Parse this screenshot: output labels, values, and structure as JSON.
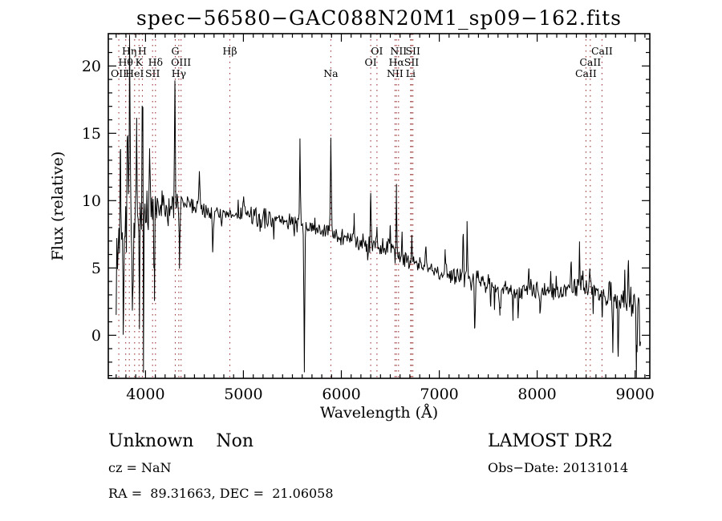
{
  "title": "spec−56580−GAC088N20M1_sp09−162.fits",
  "footer": {
    "classification": "Unknown    Non",
    "survey": "LAMOST DR2",
    "cz": "cz = NaN",
    "obs_date": "Obs−Date: 20131014",
    "ra_dec": "RA =  89.31663, DEC =  21.06058"
  },
  "chart_data": {
    "type": "line",
    "title": "spec−56580−GAC088N20M1_sp09−162.fits",
    "xlabel": "Wavelength (Å)",
    "ylabel": "Flux (relative)",
    "xlim": [
      3620,
      9150
    ],
    "ylim": [
      -3.2,
      22.4
    ],
    "x_major_ticks": [
      4000,
      5000,
      6000,
      7000,
      8000,
      9000
    ],
    "x_minor_step": 100,
    "y_major_ticks": [
      0,
      5,
      10,
      15,
      20
    ],
    "y_minor_step": 1,
    "grid": false,
    "trace_color": "#000000",
    "marker_line_color": "#993333",
    "line_markers": [
      {
        "wavelength": 3727,
        "label": "OII",
        "row": 3
      },
      {
        "wavelength": 3798,
        "label": "Hθ",
        "row": 2
      },
      {
        "wavelength": 3835,
        "label": "Hη",
        "row": 1
      },
      {
        "wavelength": 3889,
        "label": "HeI",
        "row": 3
      },
      {
        "wavelength": 3934,
        "label": "K",
        "row": 2
      },
      {
        "wavelength": 3968,
        "label": "H",
        "row": 1
      },
      {
        "wavelength": 4072,
        "label": "SII",
        "row": 3
      },
      {
        "wavelength": 4102,
        "label": "Hδ",
        "row": 2
      },
      {
        "wavelength": 4304,
        "label": "G",
        "row": 1
      },
      {
        "wavelength": 4340,
        "label": "Hγ",
        "row": 3
      },
      {
        "wavelength": 4363,
        "label": "OIII",
        "row": 2
      },
      {
        "wavelength": 4861,
        "label": "Hβ",
        "row": 1
      },
      {
        "wavelength": 5893,
        "label": "Na",
        "row": 3
      },
      {
        "wavelength": 6300,
        "label": "OI",
        "row": 2
      },
      {
        "wavelength": 6364,
        "label": "OI",
        "row": 1
      },
      {
        "wavelength": 6548,
        "label": "NII",
        "row": 3
      },
      {
        "wavelength": 6563,
        "label": "Hα",
        "row": 2
      },
      {
        "wavelength": 6584,
        "label": "NII",
        "row": 1
      },
      {
        "wavelength": 6708,
        "label": "Li",
        "row": 3
      },
      {
        "wavelength": 6717,
        "label": "SII",
        "row": 2
      },
      {
        "wavelength": 6731,
        "label": "SII",
        "row": 1
      },
      {
        "wavelength": 8498,
        "label": "CaII",
        "row": 3
      },
      {
        "wavelength": 8542,
        "label": "CaII",
        "row": 2
      },
      {
        "wavelength": 8662,
        "label": "CaII",
        "row": 1
      }
    ],
    "spectrum": {
      "range": [
        3700,
        9060
      ],
      "sample_step": 7,
      "continuum": [
        [
          3700,
          6.0
        ],
        [
          3780,
          7.8
        ],
        [
          3900,
          8.6
        ],
        [
          4000,
          8.8
        ],
        [
          4150,
          9.2
        ],
        [
          4300,
          9.6
        ],
        [
          4450,
          9.8
        ],
        [
          4600,
          9.3
        ],
        [
          4800,
          8.8
        ],
        [
          5000,
          9.0
        ],
        [
          5250,
          8.7
        ],
        [
          5500,
          8.4
        ],
        [
          5800,
          7.8
        ],
        [
          6100,
          7.2
        ],
        [
          6400,
          6.5
        ],
        [
          6700,
          5.5
        ],
        [
          7000,
          4.6
        ],
        [
          7300,
          4.3
        ],
        [
          7600,
          3.6
        ],
        [
          7900,
          3.3
        ],
        [
          8200,
          3.2
        ],
        [
          8450,
          3.7
        ],
        [
          8700,
          3.1
        ],
        [
          8900,
          2.8
        ],
        [
          9060,
          2.4
        ]
      ],
      "features": [
        [
          3745,
          6.5,
          5
        ],
        [
          3772,
          -7.0,
          4
        ],
        [
          3815,
          7.0,
          4
        ],
        [
          3837,
          11.0,
          4
        ],
        [
          3866,
          -8.0,
          4
        ],
        [
          3910,
          6.0,
          4
        ],
        [
          3937,
          -7.5,
          4
        ],
        [
          3968,
          12.3,
          4
        ],
        [
          3979,
          -10.5,
          4
        ],
        [
          4042,
          5.0,
          4
        ],
        [
          4090,
          -5.5,
          4
        ],
        [
          4300,
          9.8,
          4
        ],
        [
          4347,
          -4.6,
          4
        ],
        [
          4550,
          2.2,
          5
        ],
        [
          4686,
          -2.6,
          4
        ],
        [
          5000,
          1.4,
          5
        ],
        [
          5175,
          -1.6,
          5
        ],
        [
          5577,
          5.7,
          4
        ],
        [
          5622,
          -11.3,
          4
        ],
        [
          5893,
          7.0,
          4
        ],
        [
          6130,
          1.3,
          4
        ],
        [
          6300,
          3.9,
          4
        ],
        [
          6364,
          1.4,
          4
        ],
        [
          6498,
          1.6,
          4
        ],
        [
          6563,
          4.2,
          4
        ],
        [
          6620,
          1.4,
          4
        ],
        [
          6720,
          2.4,
          4
        ],
        [
          6862,
          2.0,
          5
        ],
        [
          7060,
          1.5,
          4
        ],
        [
          7245,
          3.3,
          5
        ],
        [
          7283,
          3.7,
          4
        ],
        [
          7363,
          -3.6,
          4
        ],
        [
          7525,
          -1.6,
          4
        ],
        [
          7620,
          -1.3,
          10
        ],
        [
          7753,
          -2.2,
          4
        ],
        [
          7805,
          -2.0,
          4
        ],
        [
          7915,
          1.6,
          4
        ],
        [
          8028,
          -1.6,
          4
        ],
        [
          8345,
          2.0,
          4
        ],
        [
          8432,
          2.9,
          4
        ],
        [
          8540,
          1.2,
          4
        ],
        [
          8665,
          -1.4,
          4
        ],
        [
          8772,
          -4.0,
          4
        ],
        [
          8827,
          -4.5,
          4
        ],
        [
          8932,
          2.3,
          4
        ],
        [
          9015,
          -5.6,
          5
        ],
        [
          9052,
          -3.0,
          4
        ]
      ],
      "noise": {
        "seed": 7,
        "base_amp": 0.85,
        "blue_start": 4350,
        "blue_extra_amp": 4.0,
        "red_start": 8550,
        "red_extra_amp": 0.7
      }
    }
  }
}
